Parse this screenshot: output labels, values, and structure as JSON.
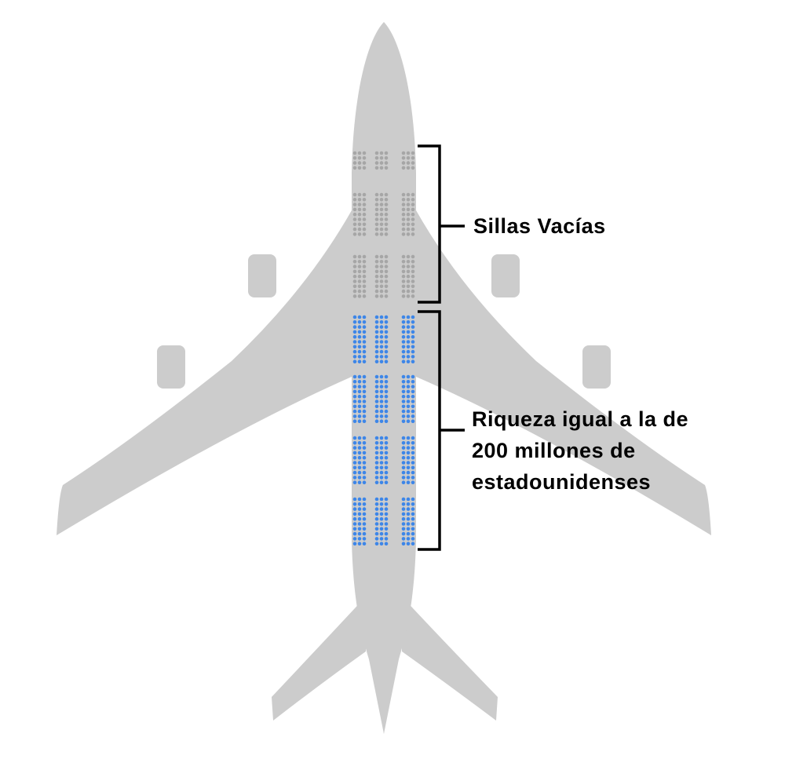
{
  "labels": {
    "empty_seats": "Sillas Vacías",
    "wealth_lines": [
      "Riqueza igual a la de",
      "200 millones de",
      "estadounidenses"
    ]
  },
  "colors": {
    "fuselage": "#cccccc",
    "empty_seat": "#a6a6a6",
    "filled_seat": "#3d86e8",
    "bracket": "#000000",
    "background": "#ffffff"
  },
  "seat_groups": {
    "empty_blocks": 3,
    "filled_blocks": 4
  }
}
